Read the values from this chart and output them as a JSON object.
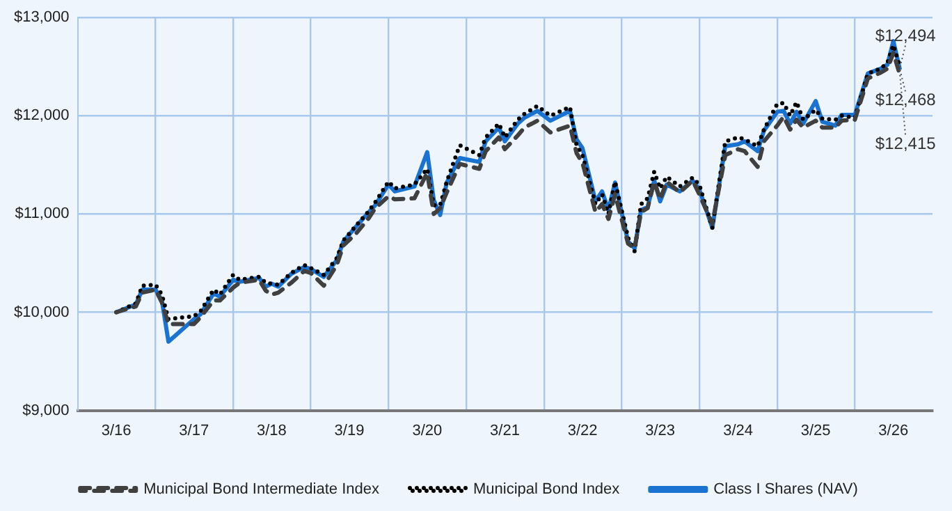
{
  "chart_data": {
    "type": "line",
    "x": [
      "2016-03",
      "2016-06",
      "2016-07",
      "2016-09",
      "2016-10",
      "2016-11",
      "2017-03",
      "2017-04",
      "2017-06",
      "2017-07",
      "2017-09",
      "2017-10",
      "2018-01",
      "2018-02",
      "2018-03",
      "2018-04",
      "2018-06",
      "2018-08",
      "2018-09",
      "2018-11",
      "2019-01",
      "2019-02",
      "2019-04",
      "2019-06",
      "2019-07",
      "2019-09",
      "2019-10",
      "2020-01",
      "2020-03",
      "2020-04",
      "2020-05",
      "2020-06",
      "2020-08",
      "2020-11",
      "2020-12",
      "2021-02",
      "2021-03",
      "2021-05",
      "2021-06",
      "2021-08",
      "2021-10",
      "2022-01",
      "2022-02",
      "2022-03",
      "2022-05",
      "2022-06",
      "2022-07",
      "2022-08",
      "2022-10",
      "2022-11",
      "2022-12",
      "2023-01",
      "2023-02",
      "2023-03",
      "2023-04",
      "2023-06",
      "2023-08",
      "2023-09",
      "2023-11",
      "2024-01",
      "2024-03",
      "2024-04",
      "2024-06",
      "2024-07",
      "2024-09",
      "2024-10",
      "2024-11",
      "2024-12",
      "2025-01",
      "2025-03",
      "2025-04",
      "2025-06",
      "2025-07",
      "2025-09",
      "2025-11",
      "2026-01",
      "2026-02",
      "2026-03",
      "2026-04"
    ],
    "series": [
      {
        "name": "Class I Shares (NAV)",
        "color": "#1a73d1",
        "line_style": "solid",
        "values": [
          10000,
          10080,
          10230,
          10230,
          10120,
          9700,
          9930,
          9980,
          10190,
          10160,
          10330,
          10310,
          10350,
          10260,
          10290,
          10260,
          10390,
          10460,
          10440,
          10360,
          10530,
          10720,
          10870,
          11020,
          11090,
          11300,
          11230,
          11280,
          11630,
          11140,
          10990,
          11320,
          11570,
          11530,
          11740,
          11880,
          11740,
          11920,
          11980,
          12050,
          11950,
          12050,
          11760,
          11670,
          11130,
          11230,
          11040,
          11320,
          10720,
          10650,
          11040,
          11070,
          11340,
          11130,
          11300,
          11230,
          11340,
          11250,
          10860,
          11690,
          11710,
          11740,
          11640,
          11850,
          12040,
          12050,
          11920,
          12040,
          11920,
          12150,
          11940,
          11900,
          12010,
          12010,
          12430,
          12480,
          12520,
          12760,
          12468
        ]
      },
      {
        "name": "Municipal Bond Index",
        "color": "#000000",
        "line_style": "dotted",
        "values": [
          10000,
          10090,
          10270,
          10280,
          10180,
          9930,
          9960,
          10010,
          10230,
          10180,
          10380,
          10330,
          10360,
          10300,
          10290,
          10280,
          10400,
          10480,
          10450,
          10380,
          10550,
          10730,
          10880,
          11030,
          11120,
          11330,
          11260,
          11300,
          11460,
          11090,
          11090,
          11330,
          11700,
          11600,
          11780,
          11920,
          11780,
          11960,
          12020,
          12100,
          12000,
          12090,
          11700,
          11600,
          11100,
          11200,
          11000,
          11330,
          10760,
          10620,
          11100,
          11160,
          11430,
          11260,
          11380,
          11280,
          11370,
          11300,
          10860,
          11740,
          11780,
          11760,
          11690,
          11860,
          12120,
          12130,
          12000,
          12140,
          11960,
          12060,
          11970,
          11960,
          12000,
          11980,
          12430,
          12480,
          12540,
          12720,
          12494
        ]
      },
      {
        "name": "Municipal Bond Intermediate Index",
        "color": "#404040",
        "line_style": "dashed",
        "values": [
          10000,
          10060,
          10200,
          10230,
          10100,
          9880,
          9880,
          9950,
          10120,
          10120,
          10250,
          10300,
          10330,
          10220,
          10180,
          10200,
          10300,
          10420,
          10400,
          10270,
          10480,
          10680,
          10800,
          10960,
          11060,
          11180,
          11150,
          11160,
          11420,
          11000,
          11060,
          11220,
          11510,
          11460,
          11640,
          11780,
          11660,
          11800,
          11880,
          11950,
          11830,
          11900,
          11620,
          11520,
          11020,
          11100,
          10950,
          11200,
          10700,
          10650,
          11020,
          11060,
          11330,
          11150,
          11330,
          11220,
          11340,
          11200,
          10900,
          11600,
          11660,
          11640,
          11480,
          11740,
          11900,
          11990,
          11860,
          11960,
          11880,
          11950,
          11880,
          11880,
          11950,
          11960,
          12380,
          12440,
          12480,
          12640,
          12415
        ]
      }
    ],
    "xlim": [
      "2015-09",
      "2026-09"
    ],
    "xticks": [
      {
        "value": "2016-03",
        "label": "3/16"
      },
      {
        "value": "2016-09",
        "label": null
      },
      {
        "value": "2017-03",
        "label": "3/17"
      },
      {
        "value": "2017-09",
        "label": null
      },
      {
        "value": "2018-03",
        "label": "3/18"
      },
      {
        "value": "2018-09",
        "label": null
      },
      {
        "value": "2019-03",
        "label": "3/19"
      },
      {
        "value": "2019-09",
        "label": null
      },
      {
        "value": "2020-03",
        "label": "3/20"
      },
      {
        "value": "2020-09",
        "label": null
      },
      {
        "value": "2021-03",
        "label": "3/21"
      },
      {
        "value": "2021-09",
        "label": null
      },
      {
        "value": "2022-03",
        "label": "3/22"
      },
      {
        "value": "2022-09",
        "label": null
      },
      {
        "value": "2023-03",
        "label": "3/23"
      },
      {
        "value": "2023-09",
        "label": null
      },
      {
        "value": "2024-03",
        "label": "3/24"
      },
      {
        "value": "2024-09",
        "label": null
      },
      {
        "value": "2025-03",
        "label": "3/25"
      },
      {
        "value": "2025-09",
        "label": null
      },
      {
        "value": "2026-03",
        "label": "3/26"
      }
    ],
    "ylim": [
      9000,
      13000
    ],
    "yticks": [
      {
        "value": 9000,
        "label": "$9,000"
      },
      {
        "value": 10000,
        "label": "$10,000"
      },
      {
        "value": 11000,
        "label": "$11,000"
      },
      {
        "value": 12000,
        "label": "$12,000"
      },
      {
        "value": 13000,
        "label": "$13,000"
      }
    ],
    "grid": true,
    "legend": "bottom",
    "marker": "none",
    "annotations": [
      {
        "text": "$12,494",
        "x": "2026-04",
        "y": 12494
      },
      {
        "text": "$12,468",
        "x": "2026-04",
        "y": 12468
      },
      {
        "text": "$12,415",
        "x": "2026-04",
        "y": 12415
      }
    ]
  }
}
